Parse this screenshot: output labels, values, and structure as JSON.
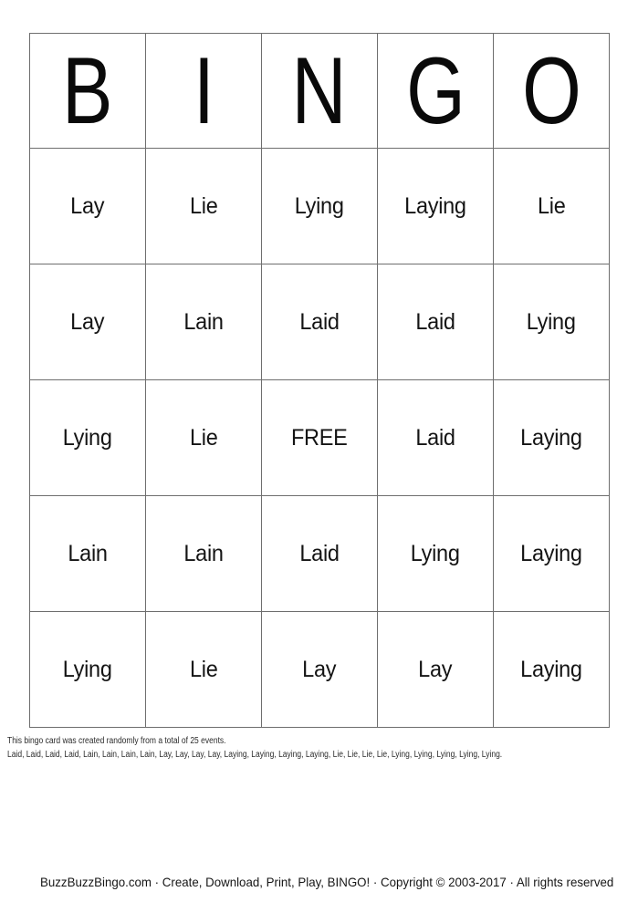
{
  "colors": {
    "background": "#ffffff",
    "grid_line": "#6e6e6e",
    "text": "#141414"
  },
  "bingo_header": {
    "letters": [
      "B",
      "I",
      "N",
      "G",
      "O"
    ]
  },
  "grid": {
    "rows": [
      [
        "Lay",
        "Lie",
        "Lying",
        "Laying",
        "Lie"
      ],
      [
        "Lay",
        "Lain",
        "Laid",
        "Laid",
        "Lying"
      ],
      [
        "Lying",
        "Lie",
        "FREE",
        "Laid",
        "Laying"
      ],
      [
        "Lain",
        "Lain",
        "Laid",
        "Lying",
        "Laying"
      ],
      [
        "Lying",
        "Lie",
        "Lay",
        "Lay",
        "Laying"
      ]
    ],
    "free_label": "FREE"
  },
  "info": {
    "line1": "This bingo card was created randomly from a total of 25 events.",
    "line2": "Laid, Laid, Laid, Laid, Lain, Lain, Lain, Lain, Lay, Lay, Lay, Lay, Laying, Laying, Laying, Laying, Lie, Lie, Lie, Lie, Lying, Lying, Lying, Lying, Lying."
  },
  "footer": {
    "text": "BuzzBuzzBingo.com · Create, Download, Print, Play, BINGO! · Copyright © 2003-2017 · All rights reserved"
  }
}
